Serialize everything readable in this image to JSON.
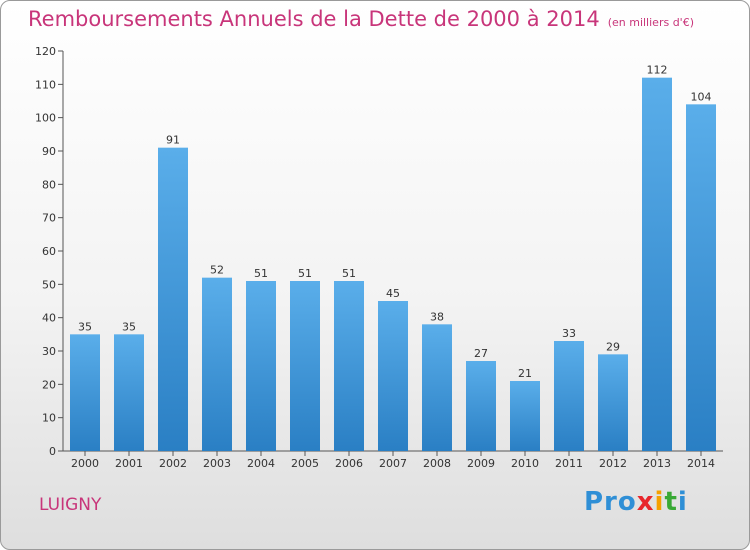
{
  "header": {
    "title": "Remboursements Annuels de la Dette de 2000 à 2014",
    "unit": "(en milliers d'€)"
  },
  "footer": {
    "commune": "LUIGNY",
    "logo": "Proxiti",
    "logo_parts": [
      "Pro",
      "x",
      "i",
      "t",
      "i"
    ]
  },
  "colors": {
    "title": "#c8357a",
    "bar_top": "#5aaeea",
    "bar_bottom": "#2a7fc4"
  },
  "chart_data": {
    "type": "bar",
    "title": "Remboursements Annuels de la Dette de 2000 à 2014",
    "xlabel": "",
    "ylabel": "",
    "categories": [
      "2000",
      "2001",
      "2002",
      "2003",
      "2004",
      "2005",
      "2006",
      "2007",
      "2008",
      "2009",
      "2010",
      "2011",
      "2012",
      "2013",
      "2014"
    ],
    "values": [
      35,
      35,
      91,
      52,
      51,
      51,
      51,
      45,
      38,
      27,
      21,
      33,
      29,
      112,
      104
    ],
    "ylim": [
      0,
      120
    ],
    "yticks": [
      0,
      10,
      20,
      30,
      40,
      50,
      60,
      70,
      80,
      90,
      100,
      110,
      120
    ],
    "grid": false,
    "data_labels": true
  }
}
